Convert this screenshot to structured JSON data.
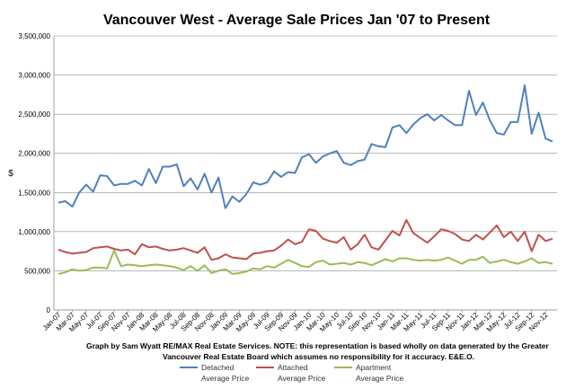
{
  "chart_data": {
    "type": "line",
    "title": "Vancouver West - Average Sale Prices Jan '07 to Present",
    "ylabel": "$",
    "ylim": [
      0,
      3500000
    ],
    "yticks": [
      0,
      500000,
      1000000,
      1500000,
      2000000,
      2500000,
      3000000,
      3500000
    ],
    "ytick_labels": [
      "0",
      "500,000",
      "1,000,000",
      "1,500,000",
      "2,000,000",
      "2,500,000",
      "3,000,000",
      "3,500,000"
    ],
    "x_tick_labels": [
      "Jan-07",
      "Mar-07",
      "May-07",
      "Jul-07",
      "Sep-07",
      "Nov-07",
      "Jan-08",
      "Mar-08",
      "May-08",
      "Jul-08",
      "Sep-08",
      "Nov-08",
      "Jan-09",
      "Mar-09",
      "May-09",
      "Jul-09",
      "Sep-09",
      "Nov-09",
      "Jan-10",
      "Mar-10",
      "May-10",
      "Jul-10",
      "Sep-10",
      "Nov-10",
      "Jan-11",
      "Mar-11",
      "May-11",
      "Jul-11",
      "Sep-11",
      "Nov-11",
      "Jan-12",
      "Mar-12",
      "May-12",
      "Jul-12",
      "Sep-12",
      "Nov-12"
    ],
    "n_points": 72,
    "gridlines": true,
    "legend_position": "bottom",
    "note": "Graph by Sam Wyatt RE/MAX Real Estate Services.   NOTE: this representation is based wholly on data generated by the Greater Vancouver Real Estate Board which assumes no responsibility for it accuracy. E&E.O.",
    "series": [
      {
        "name": "Detached",
        "legend_line1": "Detached",
        "legend_line2": "Average Price",
        "color": "#4f81bd",
        "values": [
          1370000,
          1390000,
          1320000,
          1500000,
          1600000,
          1510000,
          1720000,
          1710000,
          1590000,
          1610000,
          1610000,
          1650000,
          1590000,
          1800000,
          1620000,
          1830000,
          1830000,
          1860000,
          1580000,
          1680000,
          1540000,
          1740000,
          1500000,
          1690000,
          1300000,
          1450000,
          1380000,
          1480000,
          1630000,
          1600000,
          1630000,
          1770000,
          1700000,
          1760000,
          1750000,
          1950000,
          1990000,
          1880000,
          1960000,
          2000000,
          2030000,
          1880000,
          1850000,
          1900000,
          1920000,
          2120000,
          2090000,
          2080000,
          2330000,
          2360000,
          2260000,
          2370000,
          2450000,
          2500000,
          2420000,
          2490000,
          2420000,
          2360000,
          2360000,
          2800000,
          2490000,
          2650000,
          2420000,
          2260000,
          2240000,
          2400000,
          2400000,
          2870000,
          2250000,
          2520000,
          2190000,
          2150000
        ]
      },
      {
        "name": "Attached",
        "legend_line1": "Attached",
        "legend_line2": "Average Price",
        "color": "#c0504d",
        "values": [
          770000,
          740000,
          720000,
          730000,
          740000,
          790000,
          800000,
          810000,
          780000,
          760000,
          770000,
          710000,
          840000,
          800000,
          810000,
          780000,
          760000,
          770000,
          790000,
          760000,
          730000,
          800000,
          640000,
          660000,
          710000,
          670000,
          660000,
          650000,
          720000,
          730000,
          750000,
          760000,
          820000,
          900000,
          840000,
          870000,
          1030000,
          1010000,
          910000,
          880000,
          860000,
          930000,
          770000,
          840000,
          960000,
          800000,
          770000,
          890000,
          1010000,
          950000,
          1150000,
          980000,
          920000,
          860000,
          940000,
          1030000,
          1010000,
          970000,
          900000,
          880000,
          960000,
          900000,
          990000,
          1080000,
          930000,
          1000000,
          880000,
          1000000,
          750000,
          960000,
          880000,
          910000
        ]
      },
      {
        "name": "Apartment",
        "legend_line1": "Apartment",
        "legend_line2": "Average Price",
        "color": "#9bbb59",
        "values": [
          460000,
          480000,
          520000,
          500000,
          510000,
          540000,
          540000,
          530000,
          760000,
          560000,
          580000,
          570000,
          560000,
          570000,
          580000,
          570000,
          560000,
          540000,
          510000,
          560000,
          500000,
          570000,
          470000,
          500000,
          520000,
          460000,
          470000,
          490000,
          530000,
          520000,
          560000,
          540000,
          590000,
          640000,
          600000,
          560000,
          550000,
          610000,
          630000,
          580000,
          590000,
          600000,
          580000,
          610000,
          600000,
          570000,
          610000,
          650000,
          620000,
          660000,
          660000,
          640000,
          630000,
          640000,
          630000,
          640000,
          670000,
          630000,
          590000,
          640000,
          640000,
          680000,
          600000,
          620000,
          640000,
          610000,
          590000,
          620000,
          660000,
          600000,
          610000,
          590000
        ]
      }
    ]
  }
}
